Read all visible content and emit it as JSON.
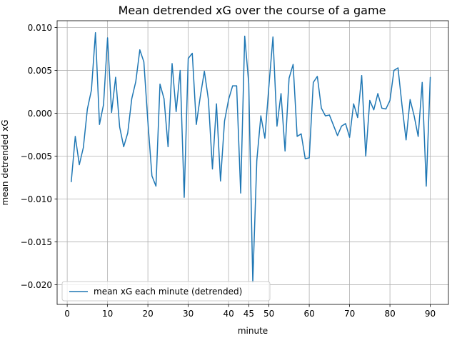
{
  "chart_data": {
    "type": "line",
    "title": "Mean detrended xG over the course of a game",
    "xlabel": "minute",
    "ylabel": "mean detrended xG",
    "xlim": [
      -2.5,
      94.5
    ],
    "ylim": [
      -0.0223,
      0.0108
    ],
    "xticks": [
      0,
      10,
      20,
      30,
      40,
      45,
      50,
      60,
      70,
      80,
      90
    ],
    "yticks": [
      0.01,
      0.005,
      0.0,
      -0.005,
      -0.01,
      -0.015,
      -0.02
    ],
    "ytick_labels": [
      "0.010",
      "0.005",
      "0.000",
      "−0.005",
      "−0.010",
      "−0.015",
      "−0.020"
    ],
    "grid": true,
    "legend_position": "lower-left",
    "series": [
      {
        "name": "mean xG each minute (detrended)",
        "color": "#1f77b4",
        "x": [
          1,
          2,
          3,
          4,
          5,
          6,
          7,
          8,
          9,
          10,
          11,
          12,
          13,
          14,
          15,
          16,
          17,
          18,
          19,
          20,
          21,
          22,
          23,
          24,
          25,
          26,
          27,
          28,
          29,
          30,
          31,
          32,
          33,
          34,
          35,
          36,
          37,
          38,
          39,
          40,
          41,
          42,
          43,
          44,
          45,
          46,
          47,
          48,
          49,
          50,
          51,
          52,
          53,
          54,
          55,
          56,
          57,
          58,
          59,
          60,
          61,
          62,
          63,
          64,
          65,
          66,
          67,
          68,
          69,
          70,
          71,
          72,
          73,
          74,
          75,
          76,
          77,
          78,
          79,
          80,
          81,
          82,
          83,
          84,
          85,
          86,
          87,
          88,
          89,
          90
        ],
        "values": [
          -0.008,
          -0.0027,
          -0.006,
          -0.004,
          0.0005,
          0.0027,
          0.0094,
          -0.0013,
          0.001,
          0.0088,
          0.0001,
          0.0042,
          -0.0016,
          -0.0039,
          -0.0023,
          0.0017,
          0.0037,
          0.0074,
          0.006,
          -0.001,
          -0.0073,
          -0.0085,
          0.0034,
          0.0017,
          -0.0039,
          0.0058,
          0.0002,
          0.005,
          -0.0098,
          0.0064,
          0.007,
          -0.0013,
          0.002,
          0.0049,
          0.0016,
          -0.0065,
          0.0011,
          -0.0079,
          -0.0009,
          0.0016,
          0.0032,
          0.0032,
          -0.0093,
          0.009,
          0.0035,
          -0.0197,
          -0.0055,
          -0.0003,
          -0.0029,
          0.0032,
          0.0089,
          -0.0015,
          0.0023,
          -0.0044,
          0.0041,
          0.0057,
          -0.0027,
          -0.0024,
          -0.0053,
          -0.0052,
          0.0036,
          0.0043,
          0.0006,
          -0.0003,
          -0.0002,
          -0.0014,
          -0.0026,
          -0.0015,
          -0.0012,
          -0.0028,
          0.0011,
          -0.0005,
          0.0044,
          -0.005,
          0.0015,
          0.0004,
          0.0023,
          0.0006,
          0.0005,
          0.0015,
          0.005,
          0.0053,
          0.0009,
          -0.0031,
          0.0016,
          -0.0003,
          -0.0027,
          0.0036,
          -0.0085,
          0.0042
        ]
      }
    ]
  }
}
